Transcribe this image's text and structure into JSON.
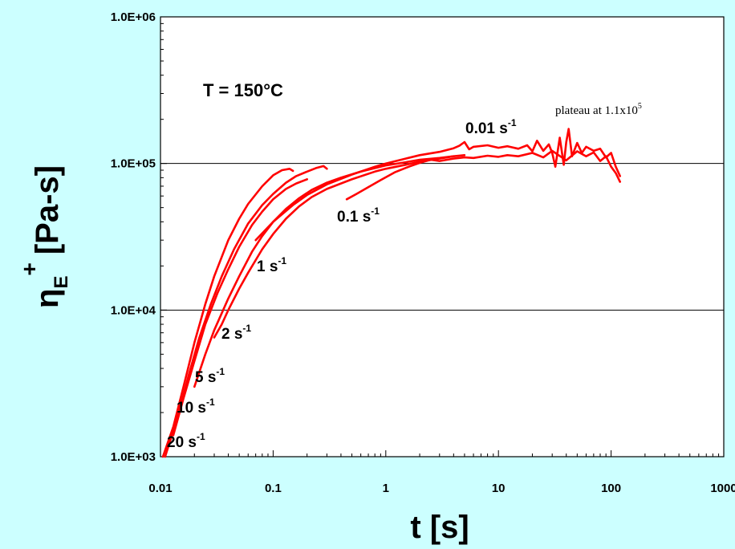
{
  "chart_data": {
    "type": "line",
    "title": "",
    "xlabel": "t [s]",
    "ylabel": {
      "base": "η",
      "sub": "E",
      "sup": "+",
      "unit": "[Pa-s]"
    },
    "xscale": "log",
    "yscale": "log",
    "xlim": [
      0.01,
      1000
    ],
    "ylim": [
      1000,
      1000000
    ],
    "x_tick_labels": [
      "0.01",
      "0.1",
      "1",
      "10",
      "100",
      "1000"
    ],
    "x_ticks": [
      0.01,
      0.1,
      1,
      10,
      100,
      1000
    ],
    "y_tick_labels": [
      "1.0E+03",
      "1.0E+04",
      "1.0E+05",
      "1.0E+06"
    ],
    "y_ticks": [
      1000,
      10000,
      100000,
      1000000
    ],
    "grid": "horizontal major lines",
    "line_color": "#ff0000",
    "background_color": "#ccffff",
    "plot_background_color": "#ffffff",
    "annotations": {
      "temperature": "T = 150°C",
      "plateau": {
        "text": "plateau at 1.1x10",
        "sup": "5"
      }
    },
    "series": [
      {
        "label": "20 s",
        "label_sup": "-1",
        "x": [
          0.0105,
          0.013,
          0.016,
          0.02,
          0.025,
          0.03,
          0.04,
          0.05,
          0.06,
          0.08,
          0.1,
          0.12,
          0.14,
          0.15
        ],
        "y": [
          1000,
          1600,
          3000,
          6000,
          11000,
          17000,
          30000,
          42000,
          53000,
          70000,
          83000,
          90000,
          92000,
          89000
        ]
      },
      {
        "label": "10 s",
        "label_sup": "-1",
        "x": [
          0.011,
          0.014,
          0.018,
          0.022,
          0.028,
          0.035,
          0.045,
          0.06,
          0.08,
          0.1,
          0.13,
          0.16,
          0.2,
          0.24,
          0.28,
          0.3
        ],
        "y": [
          1000,
          1800,
          3700,
          6400,
          11000,
          17000,
          26000,
          39000,
          52000,
          62000,
          74000,
          82000,
          88000,
          93000,
          96000,
          92000
        ]
      },
      {
        "label": "5 s",
        "label_sup": "-1",
        "x": [
          0.013,
          0.016,
          0.02,
          0.025,
          0.032,
          0.04,
          0.05,
          0.065,
          0.08,
          0.1,
          0.13,
          0.16,
          0.2
        ],
        "y": [
          1400,
          2500,
          4500,
          8000,
          13000,
          19000,
          27000,
          38000,
          47000,
          57000,
          67000,
          73000,
          78000
        ]
      },
      {
        "label": "2 s",
        "label_sup": "-1",
        "x": [
          0.02,
          0.025,
          0.03,
          0.04,
          0.05,
          0.065,
          0.08,
          0.1,
          0.13,
          0.17,
          0.22,
          0.3,
          0.4,
          0.6,
          1,
          1.5,
          2,
          3,
          4
        ],
        "y": [
          3000,
          5000,
          7300,
          12000,
          17000,
          25000,
          32000,
          40000,
          49000,
          58000,
          66000,
          74000,
          80000,
          88000,
          97000,
          102000,
          106000,
          109000,
          112000
        ]
      },
      {
        "label": "1 s",
        "label_sup": "-1",
        "x": [
          0.03,
          0.035,
          0.04,
          0.05,
          0.06,
          0.08,
          0.1,
          0.13,
          0.17,
          0.22,
          0.3,
          0.5,
          0.8,
          1,
          1.5,
          2,
          3,
          4,
          5
        ],
        "y": [
          6500,
          8000,
          10000,
          14000,
          18000,
          26000,
          33000,
          42000,
          51000,
          59000,
          67000,
          78000,
          88000,
          92000,
          98000,
          103000,
          108000,
          112000,
          114000
        ]
      },
      {
        "label": "0.1 s",
        "label_sup": "-1",
        "x": [
          0.45,
          0.55,
          0.7,
          0.9,
          1.2,
          1.6,
          2,
          2.5,
          3,
          4,
          5,
          6,
          8,
          10,
          12,
          15,
          20,
          25,
          30,
          40,
          50,
          60,
          70,
          80,
          90,
          100,
          110,
          120
        ],
        "y": [
          57000,
          62000,
          69000,
          77000,
          87000,
          95000,
          101000,
          106000,
          104000,
          108000,
          110000,
          109000,
          113000,
          111000,
          114000,
          112000,
          118000,
          110000,
          122000,
          105000,
          121000,
          112000,
          119000,
          104000,
          112000,
          95000,
          86000,
          75000
        ]
      },
      {
        "label": "0.01 s",
        "label_sup": "-1",
        "x": [
          0.07,
          0.1,
          0.15,
          0.2,
          0.3,
          0.5,
          0.8,
          1,
          1.5,
          2,
          3,
          4,
          4.5,
          5,
          5.5,
          6,
          8,
          10,
          12,
          15,
          18,
          20,
          22,
          25,
          28,
          30,
          32,
          35,
          38,
          40,
          42,
          45,
          50,
          55,
          60,
          70,
          80,
          90,
          100,
          110,
          120
        ],
        "y": [
          30000,
          40000,
          52000,
          61000,
          72000,
          84000,
          95000,
          100000,
          108000,
          114000,
          120000,
          127000,
          132000,
          140000,
          125000,
          130000,
          133000,
          128000,
          131000,
          126000,
          133000,
          121000,
          143000,
          122000,
          135000,
          118000,
          95000,
          150000,
          98000,
          140000,
          172000,
          112000,
          138000,
          118000,
          130000,
          122000,
          126000,
          110000,
          118000,
          95000,
          82000
        ]
      }
    ],
    "series_labels_position": {
      "20 s": "near t≈0.01",
      "10 s": "near t≈0.012",
      "5 s": "near t≈0.017"
    }
  }
}
